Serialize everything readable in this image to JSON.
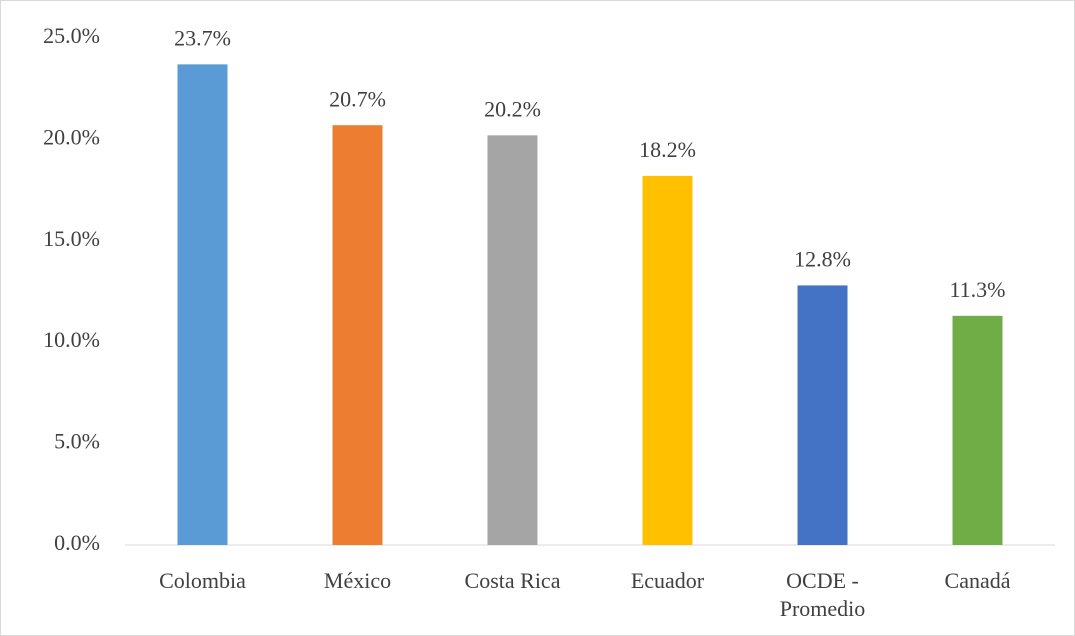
{
  "chart_data": {
    "type": "bar",
    "categories": [
      "Colombia",
      "México",
      "Costa Rica",
      "Ecuador",
      "OCDE - Promedio",
      "Canadá"
    ],
    "values": [
      23.7,
      20.7,
      20.2,
      18.2,
      12.8,
      11.3
    ],
    "value_labels": [
      "23.7%",
      "20.7%",
      "20.2%",
      "18.2%",
      "12.8%",
      "11.3%"
    ],
    "colors": [
      "#5b9bd5",
      "#ed7d31",
      "#a5a5a5",
      "#ffc000",
      "#4472c4",
      "#70ad47"
    ],
    "ylim": [
      0,
      25
    ],
    "yticks": [
      {
        "value": 0,
        "label": "0.0%"
      },
      {
        "value": 5,
        "label": "5.0%"
      },
      {
        "value": 10,
        "label": "10.0%"
      },
      {
        "value": 15,
        "label": "15.0%"
      },
      {
        "value": 20,
        "label": "20.0%"
      },
      {
        "value": 25,
        "label": "25.0%"
      }
    ],
    "grid": false
  }
}
